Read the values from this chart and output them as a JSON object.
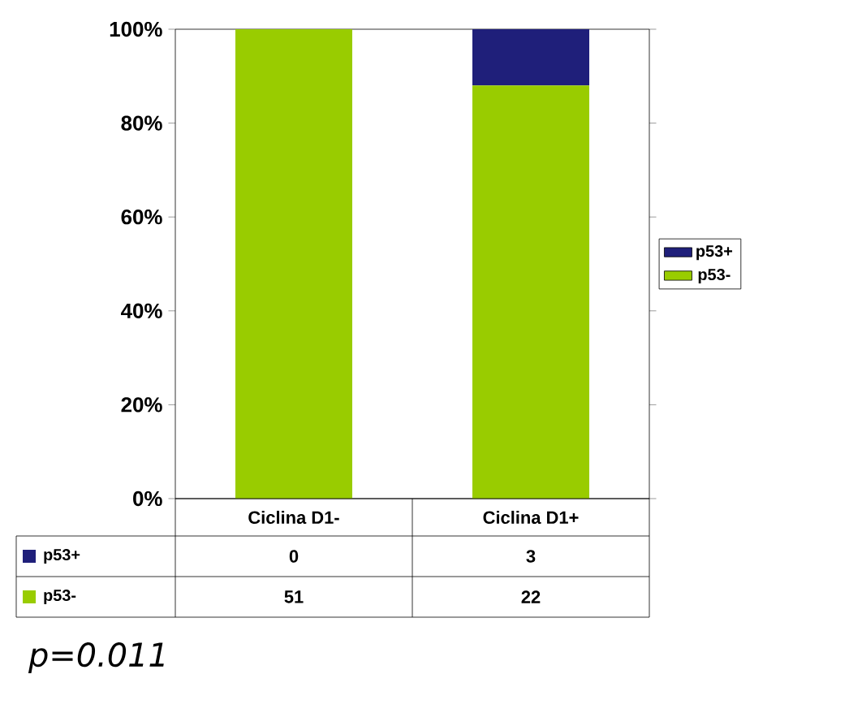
{
  "chart_data": {
    "type": "bar",
    "stacked": true,
    "categories": [
      "Ciclina D1-",
      "Ciclina D1+"
    ],
    "series": [
      {
        "name": "p53-",
        "color": "#99cc00",
        "values": [
          100,
          88
        ]
      },
      {
        "name": "p53+",
        "color": "#1f1f7a",
        "values": [
          0,
          12
        ]
      }
    ],
    "ylim": [
      0,
      100
    ],
    "yticks": [
      {
        "value": 0,
        "label": "0%"
      },
      {
        "value": 20,
        "label": "20%"
      },
      {
        "value": 40,
        "label": "40%"
      },
      {
        "value": 60,
        "label": "60%"
      },
      {
        "value": 80,
        "label": "80%"
      },
      {
        "value": 100,
        "label": "100%"
      }
    ],
    "legend": "right",
    "annotations": [
      "0",
      "3",
      "51",
      "22",
      "p=0.011"
    ]
  }
}
